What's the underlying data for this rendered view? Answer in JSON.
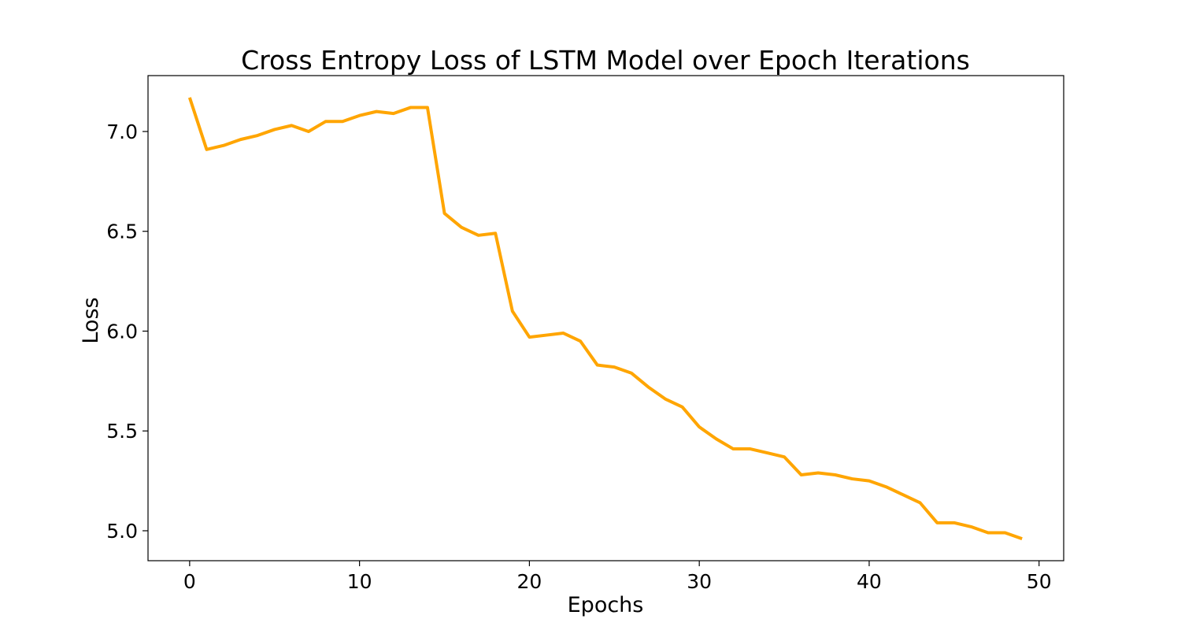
{
  "chart_data": {
    "type": "line",
    "title": "Cross Entropy Loss of LSTM Model over Epoch Iterations",
    "xlabel": "Epochs",
    "ylabel": "Loss",
    "xlim": [
      -2.45,
      51.45
    ],
    "ylim": [
      4.85,
      7.28
    ],
    "xticks": [
      0,
      10,
      20,
      30,
      40,
      50
    ],
    "xtick_labels": [
      "0",
      "10",
      "20",
      "30",
      "40",
      "50"
    ],
    "yticks": [
      5.0,
      5.5,
      6.0,
      6.5,
      7.0
    ],
    "ytick_labels": [
      "5.0",
      "5.5",
      "6.0",
      "6.5",
      "7.0"
    ],
    "grid": false,
    "legend": "none",
    "series": [
      {
        "color": "#FFA500",
        "x": [
          0,
          1,
          2,
          3,
          4,
          5,
          6,
          7,
          8,
          9,
          10,
          11,
          12,
          13,
          14,
          15,
          16,
          17,
          18,
          19,
          20,
          21,
          22,
          23,
          24,
          25,
          26,
          27,
          28,
          29,
          30,
          31,
          32,
          33,
          34,
          35,
          36,
          37,
          38,
          39,
          40,
          41,
          42,
          43,
          44,
          45,
          46,
          47,
          48,
          49
        ],
        "y": [
          7.17,
          6.91,
          6.93,
          6.96,
          6.98,
          7.01,
          7.03,
          7.0,
          7.05,
          7.05,
          7.08,
          7.1,
          7.09,
          7.12,
          7.12,
          6.59,
          6.52,
          6.48,
          6.49,
          6.1,
          5.97,
          5.98,
          5.99,
          5.95,
          5.83,
          5.82,
          5.79,
          5.72,
          5.66,
          5.62,
          5.52,
          5.46,
          5.41,
          5.41,
          5.39,
          5.37,
          5.28,
          5.29,
          5.28,
          5.26,
          5.25,
          5.22,
          5.18,
          5.14,
          5.04,
          5.04,
          5.02,
          4.99,
          4.99,
          4.96
        ]
      }
    ]
  }
}
